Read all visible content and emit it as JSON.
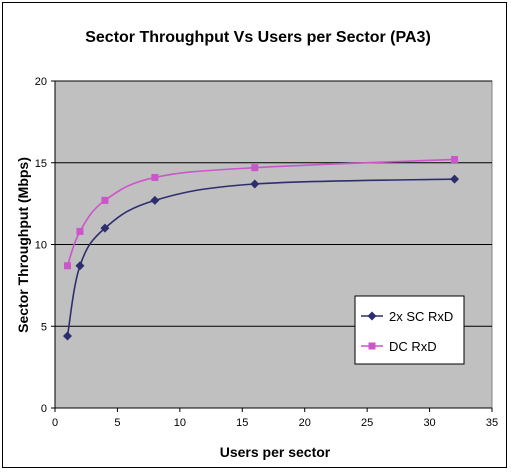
{
  "chart_data": {
    "type": "line",
    "title": "Sector Throughput Vs Users per Sector  (PA3)",
    "xlabel": "Users per sector",
    "ylabel": "Sector Throughput (Mbps)",
    "xlim": [
      0,
      35
    ],
    "ylim": [
      0,
      20
    ],
    "xticks": [
      0,
      5,
      10,
      15,
      20,
      25,
      30,
      35
    ],
    "yticks": [
      0,
      5,
      10,
      15,
      20
    ],
    "grid": "horizontal",
    "legend_position": "right",
    "plot_background": "#c0c0c0",
    "series": [
      {
        "name": "2x SC RxD",
        "color": "#2e2e6e",
        "marker": "diamond",
        "x": [
          1,
          2,
          4,
          8,
          16,
          32
        ],
        "y": [
          4.4,
          8.7,
          11.0,
          12.7,
          13.7,
          14.0
        ]
      },
      {
        "name": "DC RxD",
        "color": "#cc55cc",
        "marker": "square",
        "x": [
          1,
          2,
          4,
          8,
          16,
          32
        ],
        "y": [
          8.7,
          10.8,
          12.7,
          14.1,
          14.7,
          15.2
        ]
      }
    ]
  }
}
